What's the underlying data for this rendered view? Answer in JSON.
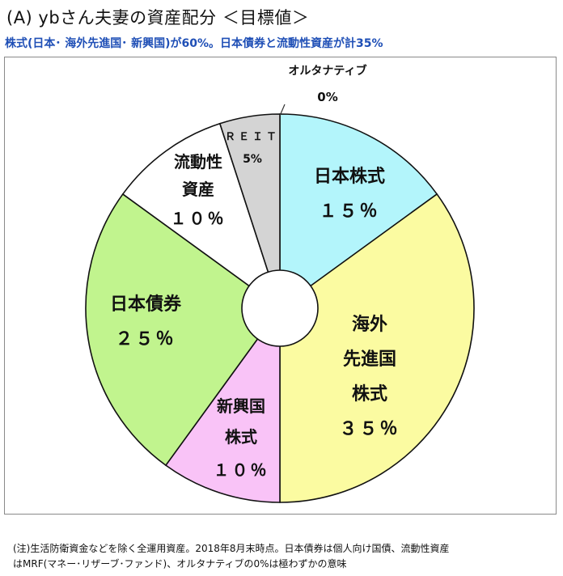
{
  "title": "(A) ybさん夫妻の資産配分 ＜目標値＞",
  "subtitle": "株式(日本･ 海外先進国･ 新興国)が60%。日本債券と流動性資産が計35%",
  "notes": [
    "(注)生活防衛資金などを除く全運用資産。2018年8月末時点。日本債券は個人向け国債、流動性資産",
    "はMRF(マネー･リザーブ･ファンド)、オルタナティブの0%は極わずかの意味"
  ],
  "chart_data": {
    "type": "pie",
    "donut": true,
    "slices": [
      {
        "lines": [
          "日本株式"
        ],
        "value": 15,
        "value_label": "１５％",
        "color": "#b3f5fb"
      },
      {
        "lines": [
          "海外",
          "先進国",
          "株式"
        ],
        "value": 35,
        "value_label": "３５％",
        "color": "#fbfba1"
      },
      {
        "lines": [
          "新興国",
          "株式"
        ],
        "value": 10,
        "value_label": "１０％",
        "color": "#f9c3f7"
      },
      {
        "lines": [
          "日本債券"
        ],
        "value": 25,
        "value_label": "２５％",
        "color": "#c1f48e"
      },
      {
        "lines": [
          "流動性",
          "資産"
        ],
        "value": 10,
        "value_label": "１０％",
        "color": "#ffffff"
      },
      {
        "lines": [
          "ＲＥＩＴ"
        ],
        "value": 5,
        "value_label": "5%",
        "color": "#d4d4d4"
      },
      {
        "lines": [
          "オルタナティブ"
        ],
        "value": 0,
        "value_label": "0%",
        "color": "#ffffff"
      }
    ]
  }
}
